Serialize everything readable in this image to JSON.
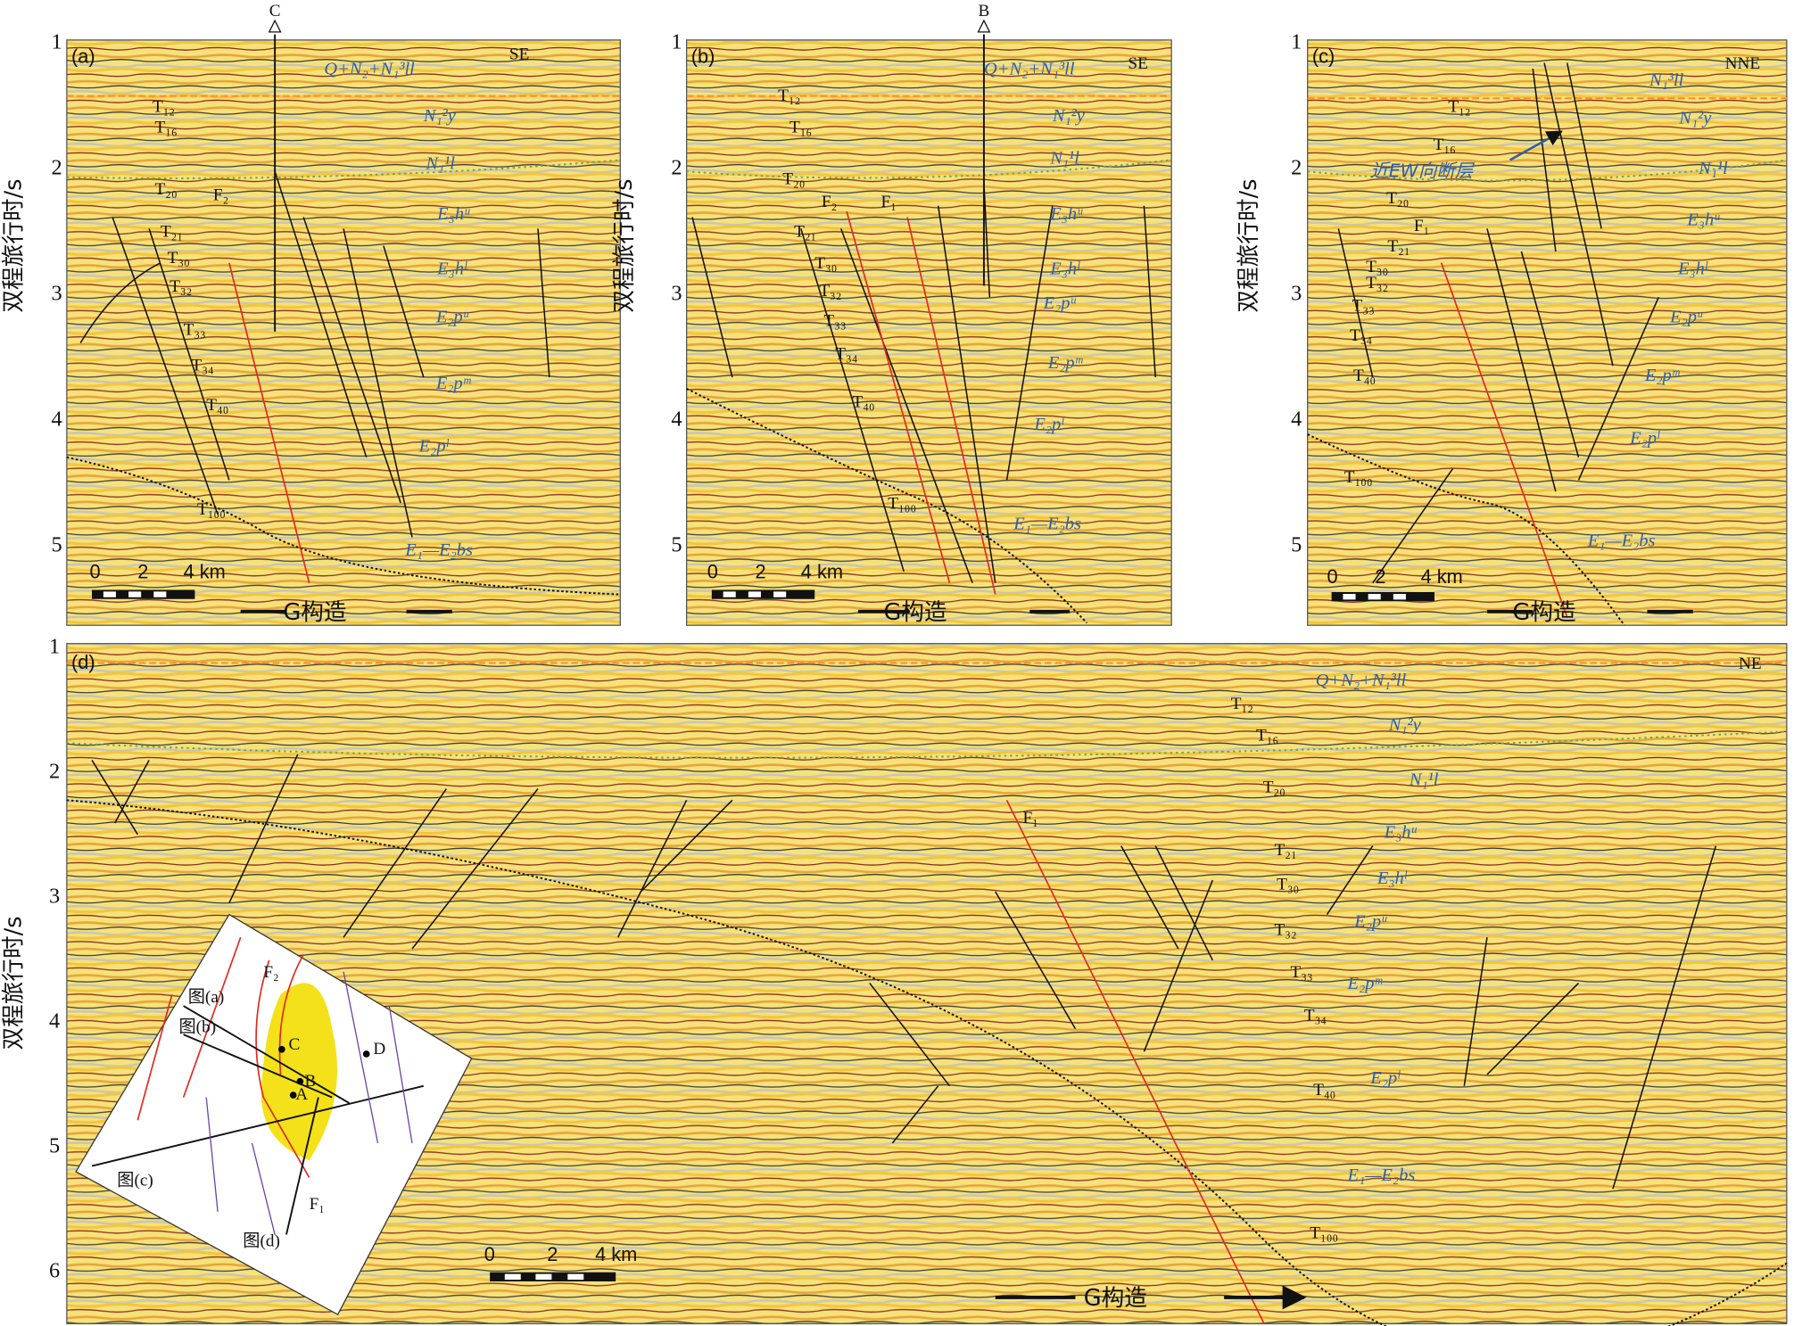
{
  "y_axis_label": "双程旅行时/s",
  "panels": [
    {
      "label": "(a)",
      "section_marker": "C",
      "direction": "SE",
      "ticks": [
        1,
        2,
        3,
        4,
        5
      ],
      "horizons": [
        "T₁₂",
        "T₁₆",
        "T₂₀",
        "T₂₁",
        "T₃₀",
        "T₃₂",
        "T₃₃",
        "T₃₄",
        "T₄₀",
        "T₁₀₀"
      ],
      "faults": [
        "F₂"
      ],
      "formations": [
        "Q+N₂+N₁³ll",
        "N₁²y",
        "N₁¹l",
        "E₃hᵘ",
        "E₃hˡ",
        "E₂pᵘ",
        "E₂pᵐ",
        "E₂pˡ",
        "E₁—E₂bs"
      ],
      "scale_bar": [
        "0",
        "2",
        "4 km"
      ],
      "structure": "G构造"
    },
    {
      "label": "(b)",
      "section_marker": "B",
      "direction": "SE",
      "ticks": [
        1,
        2,
        3,
        4,
        5
      ],
      "horizons": [
        "T₁₂",
        "T₁₆",
        "T₂₀",
        "T₂₁",
        "T₃₀",
        "T₃₂",
        "T₃₃",
        "T₃₄",
        "T₄₀",
        "T₁₀₀"
      ],
      "faults": [
        "F₂",
        "F₁"
      ],
      "formations": [
        "Q+N₂+N₁³ll",
        "N₁²y",
        "N₁¹l",
        "E₃hᵘ",
        "E₃hˡ",
        "E₂pᵘ",
        "E₂pᵐ",
        "E₂pˡ",
        "E₁—E₂bs"
      ],
      "scale_bar": [
        "0",
        "2",
        "4 km"
      ],
      "structure": "G构造"
    },
    {
      "label": "(c)",
      "direction": "NNE",
      "ticks": [
        1,
        2,
        3,
        4,
        5
      ],
      "horizons": [
        "T₁₂",
        "T₁₆",
        "T₂₀",
        "T₂₁",
        "T₃₀",
        "T₃₂",
        "T₃₃",
        "T₃₄",
        "T₄₀",
        "T₁₀₀"
      ],
      "faults": [
        "F₁"
      ],
      "formations": [
        "N₁³ll",
        "N₁²y",
        "N₁¹l",
        "E₃hᵘ",
        "E₃hˡ",
        "E₂pᵘ",
        "E₂pᵐ",
        "E₂pˡ",
        "E₁—E₂bs"
      ],
      "annotation": "近EW向断层",
      "scale_bar": [
        "0",
        "2",
        "4 km"
      ],
      "structure": "G构造"
    },
    {
      "label": "(d)",
      "direction": "NE",
      "ticks": [
        1,
        2,
        3,
        4,
        5,
        6
      ],
      "horizons": [
        "T₁₂",
        "T₁₆",
        "T₂₀",
        "T₂₁",
        "T₃₀",
        "T₃₂",
        "T₃₃",
        "T₃₄",
        "T₄₀",
        "T₁₀₀"
      ],
      "faults": [
        "F₁"
      ],
      "formations": [
        "Q+N₂+N₁³ll",
        "N₁²y",
        "N₁¹l",
        "E₃hᵘ",
        "E₃hˡ",
        "E₂pᵘ",
        "E₂pᵐ",
        "E₂pˡ",
        "E₁—E₂bs"
      ],
      "scale_bar": [
        "0",
        "2",
        "4 km"
      ],
      "structure": "G构造",
      "inset": {
        "lines": [
          "图(a)",
          "图(b)",
          "图(c)",
          "图(d)"
        ],
        "wells": [
          "C",
          "B",
          "A",
          "D"
        ],
        "faults": [
          "F₂",
          "F₁"
        ]
      }
    }
  ]
}
